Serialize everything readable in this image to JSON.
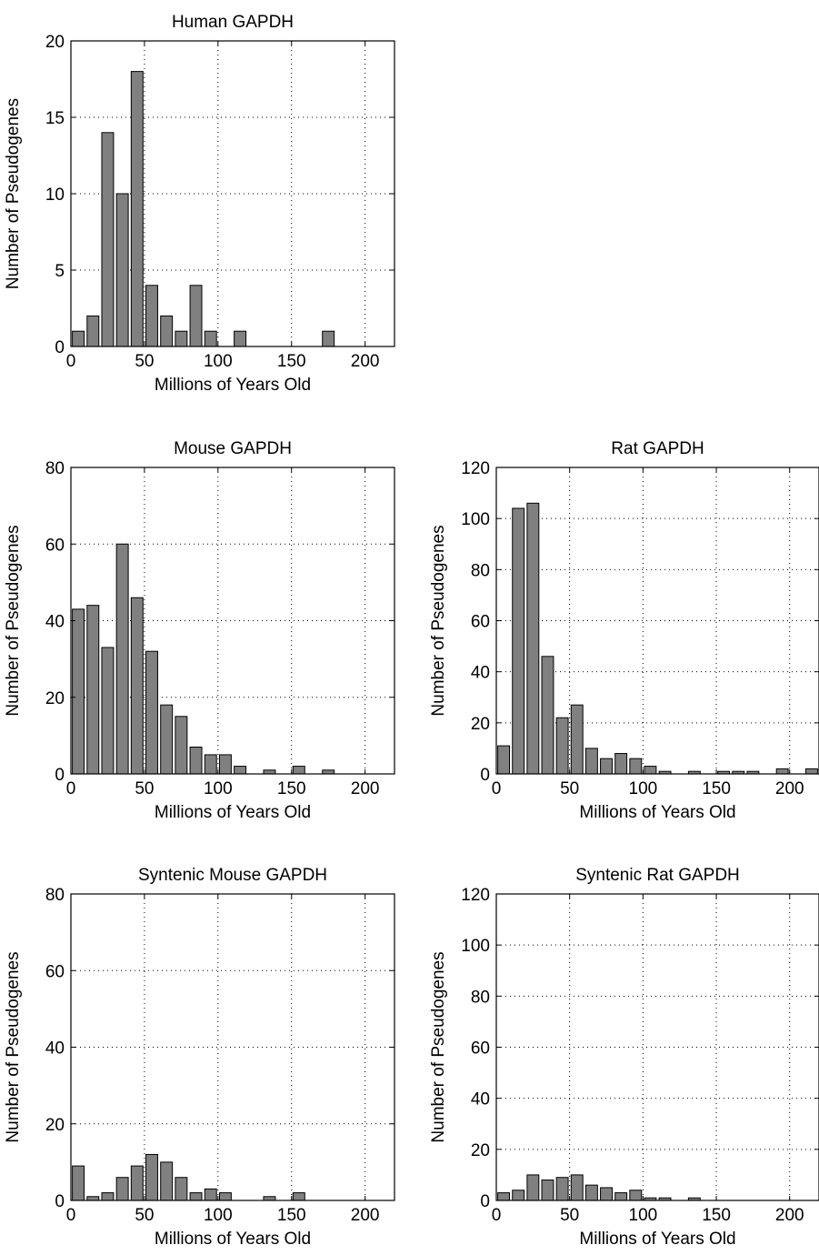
{
  "colors": {
    "bar_fill": "#808080",
    "bar_stroke": "#000000",
    "grid": "#000000",
    "axis": "#000000",
    "background": "#ffffff"
  },
  "chart_data": [
    {
      "id": "human",
      "type": "bar",
      "title": "Human GAPDH",
      "xlabel": "Millions of Years Old",
      "ylabel": "Number of Pseudogenes",
      "xlim": [
        0,
        220
      ],
      "ylim": [
        0,
        20
      ],
      "xticks": [
        0,
        50,
        100,
        150,
        200
      ],
      "yticks": [
        0,
        5,
        10,
        15,
        20
      ],
      "grid": true,
      "bin_width": 10,
      "x": [
        5,
        15,
        25,
        35,
        45,
        55,
        65,
        75,
        85,
        95,
        105,
        115,
        125,
        135,
        145,
        155,
        165,
        175,
        185,
        195,
        205,
        215
      ],
      "values": [
        1,
        2,
        14,
        10,
        18,
        4,
        2,
        1,
        4,
        1,
        0,
        1,
        0,
        0,
        0,
        0,
        0,
        1,
        0,
        0,
        0,
        0
      ]
    },
    {
      "id": "mouse",
      "type": "bar",
      "title": "Mouse GAPDH",
      "xlabel": "Millions of Years Old",
      "ylabel": "Number of Pseudogenes",
      "xlim": [
        0,
        220
      ],
      "ylim": [
        0,
        80
      ],
      "xticks": [
        0,
        50,
        100,
        150,
        200
      ],
      "yticks": [
        0,
        20,
        40,
        60,
        80
      ],
      "grid": true,
      "bin_width": 10,
      "x": [
        5,
        15,
        25,
        35,
        45,
        55,
        65,
        75,
        85,
        95,
        105,
        115,
        125,
        135,
        145,
        155,
        165,
        175,
        185,
        195,
        205,
        215
      ],
      "values": [
        43,
        44,
        33,
        60,
        46,
        32,
        18,
        15,
        7,
        5,
        5,
        2,
        0,
        1,
        0,
        2,
        0,
        1,
        0,
        0,
        0,
        0
      ]
    },
    {
      "id": "rat",
      "type": "bar",
      "title": "Rat GAPDH",
      "xlabel": "Millions of Years Old",
      "ylabel": "Number of Pseudogenes",
      "xlim": [
        0,
        220
      ],
      "ylim": [
        0,
        120
      ],
      "xticks": [
        0,
        50,
        100,
        150,
        200
      ],
      "yticks": [
        0,
        20,
        40,
        60,
        80,
        100,
        120
      ],
      "grid": true,
      "bin_width": 10,
      "x": [
        5,
        15,
        25,
        35,
        45,
        55,
        65,
        75,
        85,
        95,
        105,
        115,
        125,
        135,
        145,
        155,
        165,
        175,
        185,
        195,
        205,
        215
      ],
      "values": [
        11,
        104,
        106,
        46,
        22,
        27,
        10,
        6,
        8,
        6,
        3,
        1,
        0,
        1,
        0,
        1,
        1,
        1,
        0,
        2,
        0,
        2
      ]
    },
    {
      "id": "syn-mouse",
      "type": "bar",
      "title": "Syntenic Mouse GAPDH",
      "xlabel": "Millions of Years Old",
      "ylabel": "Number of Pseudogenes",
      "xlim": [
        0,
        220
      ],
      "ylim": [
        0,
        80
      ],
      "xticks": [
        0,
        50,
        100,
        150,
        200
      ],
      "yticks": [
        0,
        20,
        40,
        60,
        80
      ],
      "grid": true,
      "bin_width": 10,
      "x": [
        5,
        15,
        25,
        35,
        45,
        55,
        65,
        75,
        85,
        95,
        105,
        115,
        125,
        135,
        145,
        155,
        165,
        175,
        185,
        195,
        205,
        215
      ],
      "values": [
        9,
        1,
        2,
        6,
        9,
        12,
        10,
        6,
        2,
        3,
        2,
        0,
        0,
        1,
        0,
        2,
        0,
        0,
        0,
        0,
        0,
        0
      ]
    },
    {
      "id": "syn-rat",
      "type": "bar",
      "title": "Syntenic Rat GAPDH",
      "xlabel": "Millions of Years Old",
      "ylabel": "Number of Pseudogenes",
      "xlim": [
        0,
        220
      ],
      "ylim": [
        0,
        120
      ],
      "xticks": [
        0,
        50,
        100,
        150,
        200
      ],
      "yticks": [
        0,
        20,
        40,
        60,
        80,
        100,
        120
      ],
      "grid": true,
      "bin_width": 10,
      "x": [
        5,
        15,
        25,
        35,
        45,
        55,
        65,
        75,
        85,
        95,
        105,
        115,
        125,
        135,
        145,
        155,
        165,
        175,
        185,
        195,
        205,
        215
      ],
      "values": [
        3,
        4,
        10,
        8,
        9,
        10,
        6,
        5,
        3,
        4,
        1,
        1,
        0,
        1,
        0,
        0,
        0,
        0,
        0,
        0,
        0,
        0
      ]
    }
  ]
}
